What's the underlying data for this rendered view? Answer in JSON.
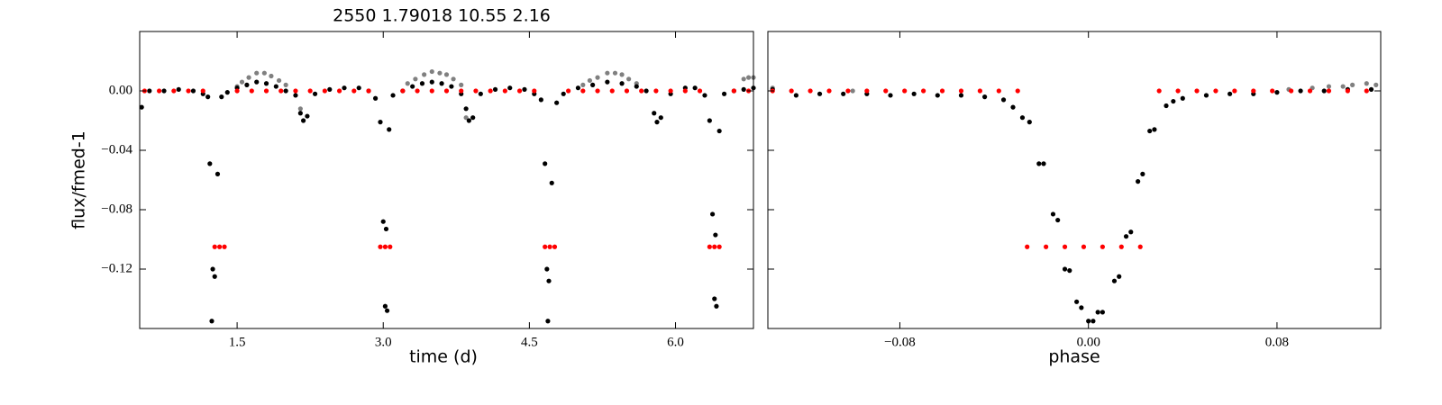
{
  "chart_data": [
    {
      "type": "scatter",
      "title": "2550 1.79018 10.55 2.16",
      "xlabel": "time (d)",
      "ylabel": "flux/fmed-1",
      "xlim": [
        0.5,
        6.8
      ],
      "ylim": [
        -0.16,
        0.04
      ],
      "xticks": [
        1.5,
        {
          "value": 3,
          "label": "3.0"
        },
        4.5,
        {
          "value": 6,
          "label": "6.0"
        }
      ],
      "yticks": [
        {
          "value": 0,
          "label": "0.00"
        },
        {
          "value": -0.04,
          "label": "−0.04"
        },
        {
          "value": -0.08,
          "label": "−0.08"
        },
        {
          "value": -0.12,
          "label": "−0.12"
        }
      ],
      "ytick_labels": true,
      "series": [
        {
          "color": "#808080",
          "x": [
            1.5,
            1.55,
            1.62,
            1.7,
            1.78,
            1.85,
            1.93,
            2.0,
            2.15,
            3.25,
            3.33,
            3.42,
            3.5,
            3.58,
            3.65,
            3.72,
            3.8,
            3.85,
            5.05,
            5.12,
            5.2,
            5.3,
            5.38,
            5.45,
            5.52,
            5.6,
            6.7,
            6.75,
            6.8
          ],
          "values": [
            0.003,
            0.006,
            0.009,
            0.012,
            0.012,
            0.01,
            0.007,
            0.004,
            -0.012,
            0.005,
            0.008,
            0.011,
            0.013,
            0.012,
            0.011,
            0.008,
            0.004,
            -0.018,
            0.004,
            0.007,
            0.009,
            0.012,
            0.012,
            0.011,
            0.008,
            0.005,
            0.008,
            0.009,
            0.009
          ]
        },
        {
          "color": "#000000",
          "x": [
            0.52,
            0.6,
            0.75,
            0.9,
            1.05,
            1.15,
            1.2,
            1.22,
            1.25,
            1.27,
            1.24,
            1.3,
            1.34,
            1.4,
            1.5,
            1.6,
            1.7,
            1.8,
            1.9,
            2.0,
            2.1,
            2.15,
            2.18,
            2.22,
            2.3,
            2.45,
            2.6,
            2.75,
            2.85,
            2.92,
            2.97,
            3.0,
            3.02,
            3.04,
            3.03,
            3.06,
            3.1,
            3.2,
            3.3,
            3.4,
            3.5,
            3.6,
            3.7,
            3.8,
            3.85,
            3.88,
            3.92,
            4.0,
            4.15,
            4.3,
            4.45,
            4.55,
            4.62,
            4.66,
            4.68,
            4.7,
            4.69,
            4.73,
            4.78,
            4.85,
            5.0,
            5.15,
            5.3,
            5.45,
            5.6,
            5.7,
            5.78,
            5.81,
            5.85,
            5.95,
            6.1,
            6.2,
            6.3,
            6.35,
            6.38,
            6.4,
            6.42,
            6.41,
            6.45,
            6.5,
            6.6,
            6.7,
            6.8
          ],
          "values": [
            -0.011,
            0.0,
            0.0,
            0.001,
            0.0,
            -0.002,
            -0.004,
            -0.049,
            -0.12,
            -0.125,
            -0.155,
            -0.056,
            -0.004,
            -0.001,
            0.002,
            0.004,
            0.006,
            0.005,
            0.003,
            0.0,
            -0.003,
            -0.015,
            -0.02,
            -0.017,
            -0.002,
            0.001,
            0.002,
            0.002,
            0.0,
            -0.005,
            -0.021,
            -0.088,
            -0.145,
            -0.148,
            -0.093,
            -0.026,
            -0.003,
            0.0,
            0.003,
            0.005,
            0.006,
            0.005,
            0.003,
            -0.002,
            -0.012,
            -0.02,
            -0.018,
            -0.002,
            0.001,
            0.002,
            0.001,
            -0.002,
            -0.006,
            -0.049,
            -0.12,
            -0.128,
            -0.155,
            -0.062,
            -0.008,
            -0.002,
            0.002,
            0.004,
            0.006,
            0.005,
            0.003,
            0.0,
            -0.015,
            -0.021,
            -0.018,
            -0.002,
            0.002,
            0.002,
            -0.003,
            -0.02,
            -0.083,
            -0.14,
            -0.145,
            -0.097,
            -0.027,
            -0.002,
            0.0,
            0.001,
            0.002
          ]
        },
        {
          "color": "#ff0000",
          "x": [
            0.55,
            0.7,
            0.85,
            1.0,
            1.15,
            1.27,
            1.32,
            1.37,
            1.5,
            1.65,
            1.8,
            1.95,
            2.1,
            2.25,
            2.4,
            2.55,
            2.7,
            2.85,
            2.97,
            3.02,
            3.07,
            3.2,
            3.35,
            3.5,
            3.65,
            3.8,
            3.95,
            4.1,
            4.25,
            4.4,
            4.55,
            4.66,
            4.71,
            4.76,
            4.9,
            5.05,
            5.2,
            5.35,
            5.5,
            5.65,
            5.8,
            5.95,
            6.1,
            6.25,
            6.35,
            6.4,
            6.45,
            6.6,
            6.75
          ],
          "values": [
            0,
            0,
            0,
            0,
            0,
            -0.105,
            -0.105,
            -0.105,
            0,
            0,
            0,
            0,
            0,
            0,
            0,
            0,
            0,
            0,
            -0.105,
            -0.105,
            -0.105,
            0,
            0,
            0,
            0,
            0,
            0,
            0,
            0,
            0,
            0,
            -0.105,
            -0.105,
            -0.105,
            0,
            0,
            0,
            0,
            0,
            0,
            0,
            0,
            0,
            0,
            -0.105,
            -0.105,
            -0.105,
            0,
            0
          ]
        }
      ]
    },
    {
      "type": "scatter",
      "xlabel": "phase",
      "xlim": [
        -0.136,
        0.124
      ],
      "ylim": [
        -0.16,
        0.04
      ],
      "xticks": [
        {
          "value": -0.08,
          "label": "−0.08"
        },
        {
          "value": 0,
          "label": "0.00"
        },
        0.08
      ],
      "yticks": [
        0,
        -0.04,
        -0.08,
        -0.12
      ],
      "ytick_labels": false,
      "series": [
        {
          "color": "#808080",
          "x": [
            -0.134,
            -0.1,
            0.085,
            0.095,
            0.102,
            0.108,
            0.112,
            0.118,
            0.122
          ],
          "values": [
            0.002,
            0.0,
            0.001,
            0.002,
            0.003,
            0.003,
            0.004,
            0.005,
            0.004
          ]
        },
        {
          "color": "#000000",
          "x": [
            -0.134,
            -0.124,
            -0.114,
            -0.104,
            -0.094,
            -0.084,
            -0.074,
            -0.064,
            -0.054,
            -0.044,
            -0.036,
            -0.032,
            -0.028,
            -0.025,
            -0.021,
            -0.019,
            -0.015,
            -0.013,
            -0.01,
            -0.008,
            -0.005,
            -0.003,
            0.0,
            0.002,
            0.004,
            0.006,
            0.011,
            0.013,
            0.016,
            0.018,
            0.021,
            0.023,
            0.026,
            0.028,
            0.033,
            0.036,
            0.04,
            0.05,
            0.06,
            0.07,
            0.08,
            0.09,
            0.1,
            0.11,
            0.12
          ],
          "values": [
            0.001,
            -0.003,
            -0.002,
            -0.002,
            -0.002,
            -0.003,
            -0.002,
            -0.003,
            -0.003,
            -0.004,
            -0.006,
            -0.011,
            -0.018,
            -0.021,
            -0.049,
            -0.049,
            -0.083,
            -0.087,
            -0.12,
            -0.121,
            -0.142,
            -0.146,
            -0.155,
            -0.155,
            -0.149,
            -0.149,
            -0.128,
            -0.125,
            -0.098,
            -0.095,
            -0.061,
            -0.056,
            -0.027,
            -0.026,
            -0.01,
            -0.007,
            -0.005,
            -0.003,
            -0.002,
            -0.002,
            -0.001,
            0.0,
            0.0,
            0.001,
            0.001
          ]
        },
        {
          "color": "#ff0000",
          "x": [
            -0.134,
            -0.126,
            -0.118,
            -0.11,
            -0.102,
            -0.094,
            -0.086,
            -0.078,
            -0.07,
            -0.062,
            -0.054,
            -0.046,
            -0.038,
            -0.03,
            -0.026,
            -0.018,
            -0.01,
            -0.002,
            0.006,
            0.014,
            0.022,
            0.03,
            0.038,
            0.046,
            0.054,
            0.062,
            0.07,
            0.078,
            0.086,
            0.094,
            0.102,
            0.11,
            0.118
          ],
          "values": [
            0,
            0,
            0,
            0,
            0,
            0,
            0,
            0,
            0,
            0,
            0,
            0,
            0,
            0,
            -0.105,
            -0.105,
            -0.105,
            -0.105,
            -0.105,
            -0.105,
            -0.105,
            0,
            0,
            0,
            0,
            0,
            0,
            0,
            0,
            0,
            0,
            0,
            0
          ]
        }
      ]
    }
  ]
}
